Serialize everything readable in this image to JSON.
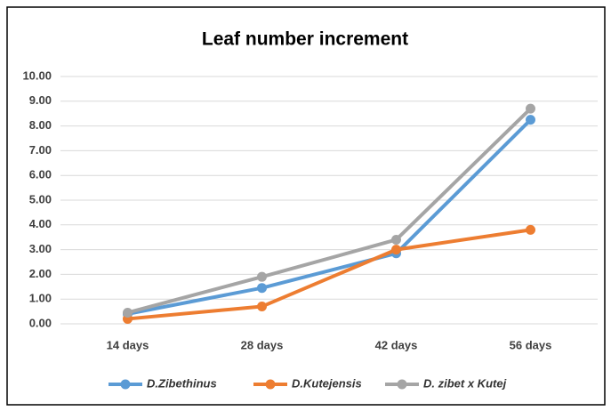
{
  "chart_data": {
    "type": "line",
    "title": "Leaf number increment",
    "categories": [
      "14 days",
      "28 days",
      "42 days",
      "56 days"
    ],
    "series": [
      {
        "name": "D.Zibethinus",
        "color": "#5b9bd5",
        "values": [
          0.4,
          1.45,
          2.85,
          8.25
        ]
      },
      {
        "name": "D.Kutejensis",
        "color": "#ed7d31",
        "values": [
          0.2,
          0.7,
          3.0,
          3.8
        ]
      },
      {
        "name": "D. zibet x Kutej",
        "color": "#a5a5a5",
        "values": [
          0.45,
          1.9,
          3.4,
          8.7
        ]
      }
    ],
    "ylim": [
      0,
      10
    ],
    "yticks": [
      {
        "value": 0,
        "label": "0.00"
      },
      {
        "value": 1,
        "label": "1.00"
      },
      {
        "value": 2,
        "label": "2.00"
      },
      {
        "value": 3,
        "label": "3.00"
      },
      {
        "value": 4,
        "label": "4.00"
      },
      {
        "value": 5,
        "label": "5.00"
      },
      {
        "value": 6,
        "label": "6.00"
      },
      {
        "value": 7,
        "label": "7.00"
      },
      {
        "value": 8,
        "label": "8.00"
      },
      {
        "value": 9,
        "label": "9.00"
      },
      {
        "value": 10,
        "label": "10.00"
      }
    ],
    "grid": true,
    "legend": "bottom"
  }
}
